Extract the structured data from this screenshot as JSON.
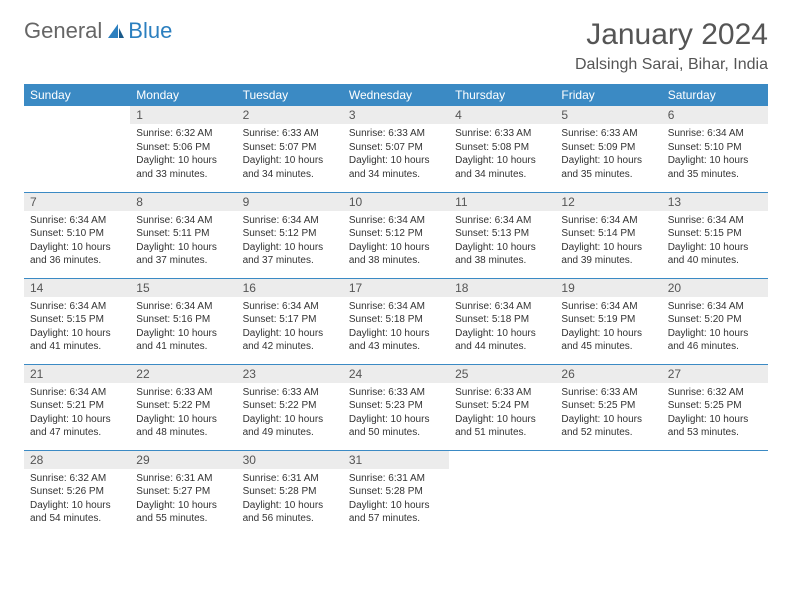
{
  "brand": {
    "part1": "General",
    "part2": "Blue"
  },
  "title": "January 2024",
  "location": "Dalsingh Sarai, Bihar, India",
  "colors": {
    "header_bg": "#3b8ac4",
    "header_text": "#ffffff",
    "daynum_bg": "#ececec",
    "border": "#3b8ac4",
    "logo_blue": "#2b7fbf"
  },
  "weekdays": [
    "Sunday",
    "Monday",
    "Tuesday",
    "Wednesday",
    "Thursday",
    "Friday",
    "Saturday"
  ],
  "labels": {
    "sunrise": "Sunrise:",
    "sunset": "Sunset:",
    "daylight": "Daylight:"
  },
  "weeks": [
    [
      null,
      {
        "n": "1",
        "sr": "6:32 AM",
        "ss": "5:06 PM",
        "dl": "10 hours and 33 minutes."
      },
      {
        "n": "2",
        "sr": "6:33 AM",
        "ss": "5:07 PM",
        "dl": "10 hours and 34 minutes."
      },
      {
        "n": "3",
        "sr": "6:33 AM",
        "ss": "5:07 PM",
        "dl": "10 hours and 34 minutes."
      },
      {
        "n": "4",
        "sr": "6:33 AM",
        "ss": "5:08 PM",
        "dl": "10 hours and 34 minutes."
      },
      {
        "n": "5",
        "sr": "6:33 AM",
        "ss": "5:09 PM",
        "dl": "10 hours and 35 minutes."
      },
      {
        "n": "6",
        "sr": "6:34 AM",
        "ss": "5:10 PM",
        "dl": "10 hours and 35 minutes."
      }
    ],
    [
      {
        "n": "7",
        "sr": "6:34 AM",
        "ss": "5:10 PM",
        "dl": "10 hours and 36 minutes."
      },
      {
        "n": "8",
        "sr": "6:34 AM",
        "ss": "5:11 PM",
        "dl": "10 hours and 37 minutes."
      },
      {
        "n": "9",
        "sr": "6:34 AM",
        "ss": "5:12 PM",
        "dl": "10 hours and 37 minutes."
      },
      {
        "n": "10",
        "sr": "6:34 AM",
        "ss": "5:12 PM",
        "dl": "10 hours and 38 minutes."
      },
      {
        "n": "11",
        "sr": "6:34 AM",
        "ss": "5:13 PM",
        "dl": "10 hours and 38 minutes."
      },
      {
        "n": "12",
        "sr": "6:34 AM",
        "ss": "5:14 PM",
        "dl": "10 hours and 39 minutes."
      },
      {
        "n": "13",
        "sr": "6:34 AM",
        "ss": "5:15 PM",
        "dl": "10 hours and 40 minutes."
      }
    ],
    [
      {
        "n": "14",
        "sr": "6:34 AM",
        "ss": "5:15 PM",
        "dl": "10 hours and 41 minutes."
      },
      {
        "n": "15",
        "sr": "6:34 AM",
        "ss": "5:16 PM",
        "dl": "10 hours and 41 minutes."
      },
      {
        "n": "16",
        "sr": "6:34 AM",
        "ss": "5:17 PM",
        "dl": "10 hours and 42 minutes."
      },
      {
        "n": "17",
        "sr": "6:34 AM",
        "ss": "5:18 PM",
        "dl": "10 hours and 43 minutes."
      },
      {
        "n": "18",
        "sr": "6:34 AM",
        "ss": "5:18 PM",
        "dl": "10 hours and 44 minutes."
      },
      {
        "n": "19",
        "sr": "6:34 AM",
        "ss": "5:19 PM",
        "dl": "10 hours and 45 minutes."
      },
      {
        "n": "20",
        "sr": "6:34 AM",
        "ss": "5:20 PM",
        "dl": "10 hours and 46 minutes."
      }
    ],
    [
      {
        "n": "21",
        "sr": "6:34 AM",
        "ss": "5:21 PM",
        "dl": "10 hours and 47 minutes."
      },
      {
        "n": "22",
        "sr": "6:33 AM",
        "ss": "5:22 PM",
        "dl": "10 hours and 48 minutes."
      },
      {
        "n": "23",
        "sr": "6:33 AM",
        "ss": "5:22 PM",
        "dl": "10 hours and 49 minutes."
      },
      {
        "n": "24",
        "sr": "6:33 AM",
        "ss": "5:23 PM",
        "dl": "10 hours and 50 minutes."
      },
      {
        "n": "25",
        "sr": "6:33 AM",
        "ss": "5:24 PM",
        "dl": "10 hours and 51 minutes."
      },
      {
        "n": "26",
        "sr": "6:33 AM",
        "ss": "5:25 PM",
        "dl": "10 hours and 52 minutes."
      },
      {
        "n": "27",
        "sr": "6:32 AM",
        "ss": "5:25 PM",
        "dl": "10 hours and 53 minutes."
      }
    ],
    [
      {
        "n": "28",
        "sr": "6:32 AM",
        "ss": "5:26 PM",
        "dl": "10 hours and 54 minutes."
      },
      {
        "n": "29",
        "sr": "6:31 AM",
        "ss": "5:27 PM",
        "dl": "10 hours and 55 minutes."
      },
      {
        "n": "30",
        "sr": "6:31 AM",
        "ss": "5:28 PM",
        "dl": "10 hours and 56 minutes."
      },
      {
        "n": "31",
        "sr": "6:31 AM",
        "ss": "5:28 PM",
        "dl": "10 hours and 57 minutes."
      },
      null,
      null,
      null
    ]
  ]
}
